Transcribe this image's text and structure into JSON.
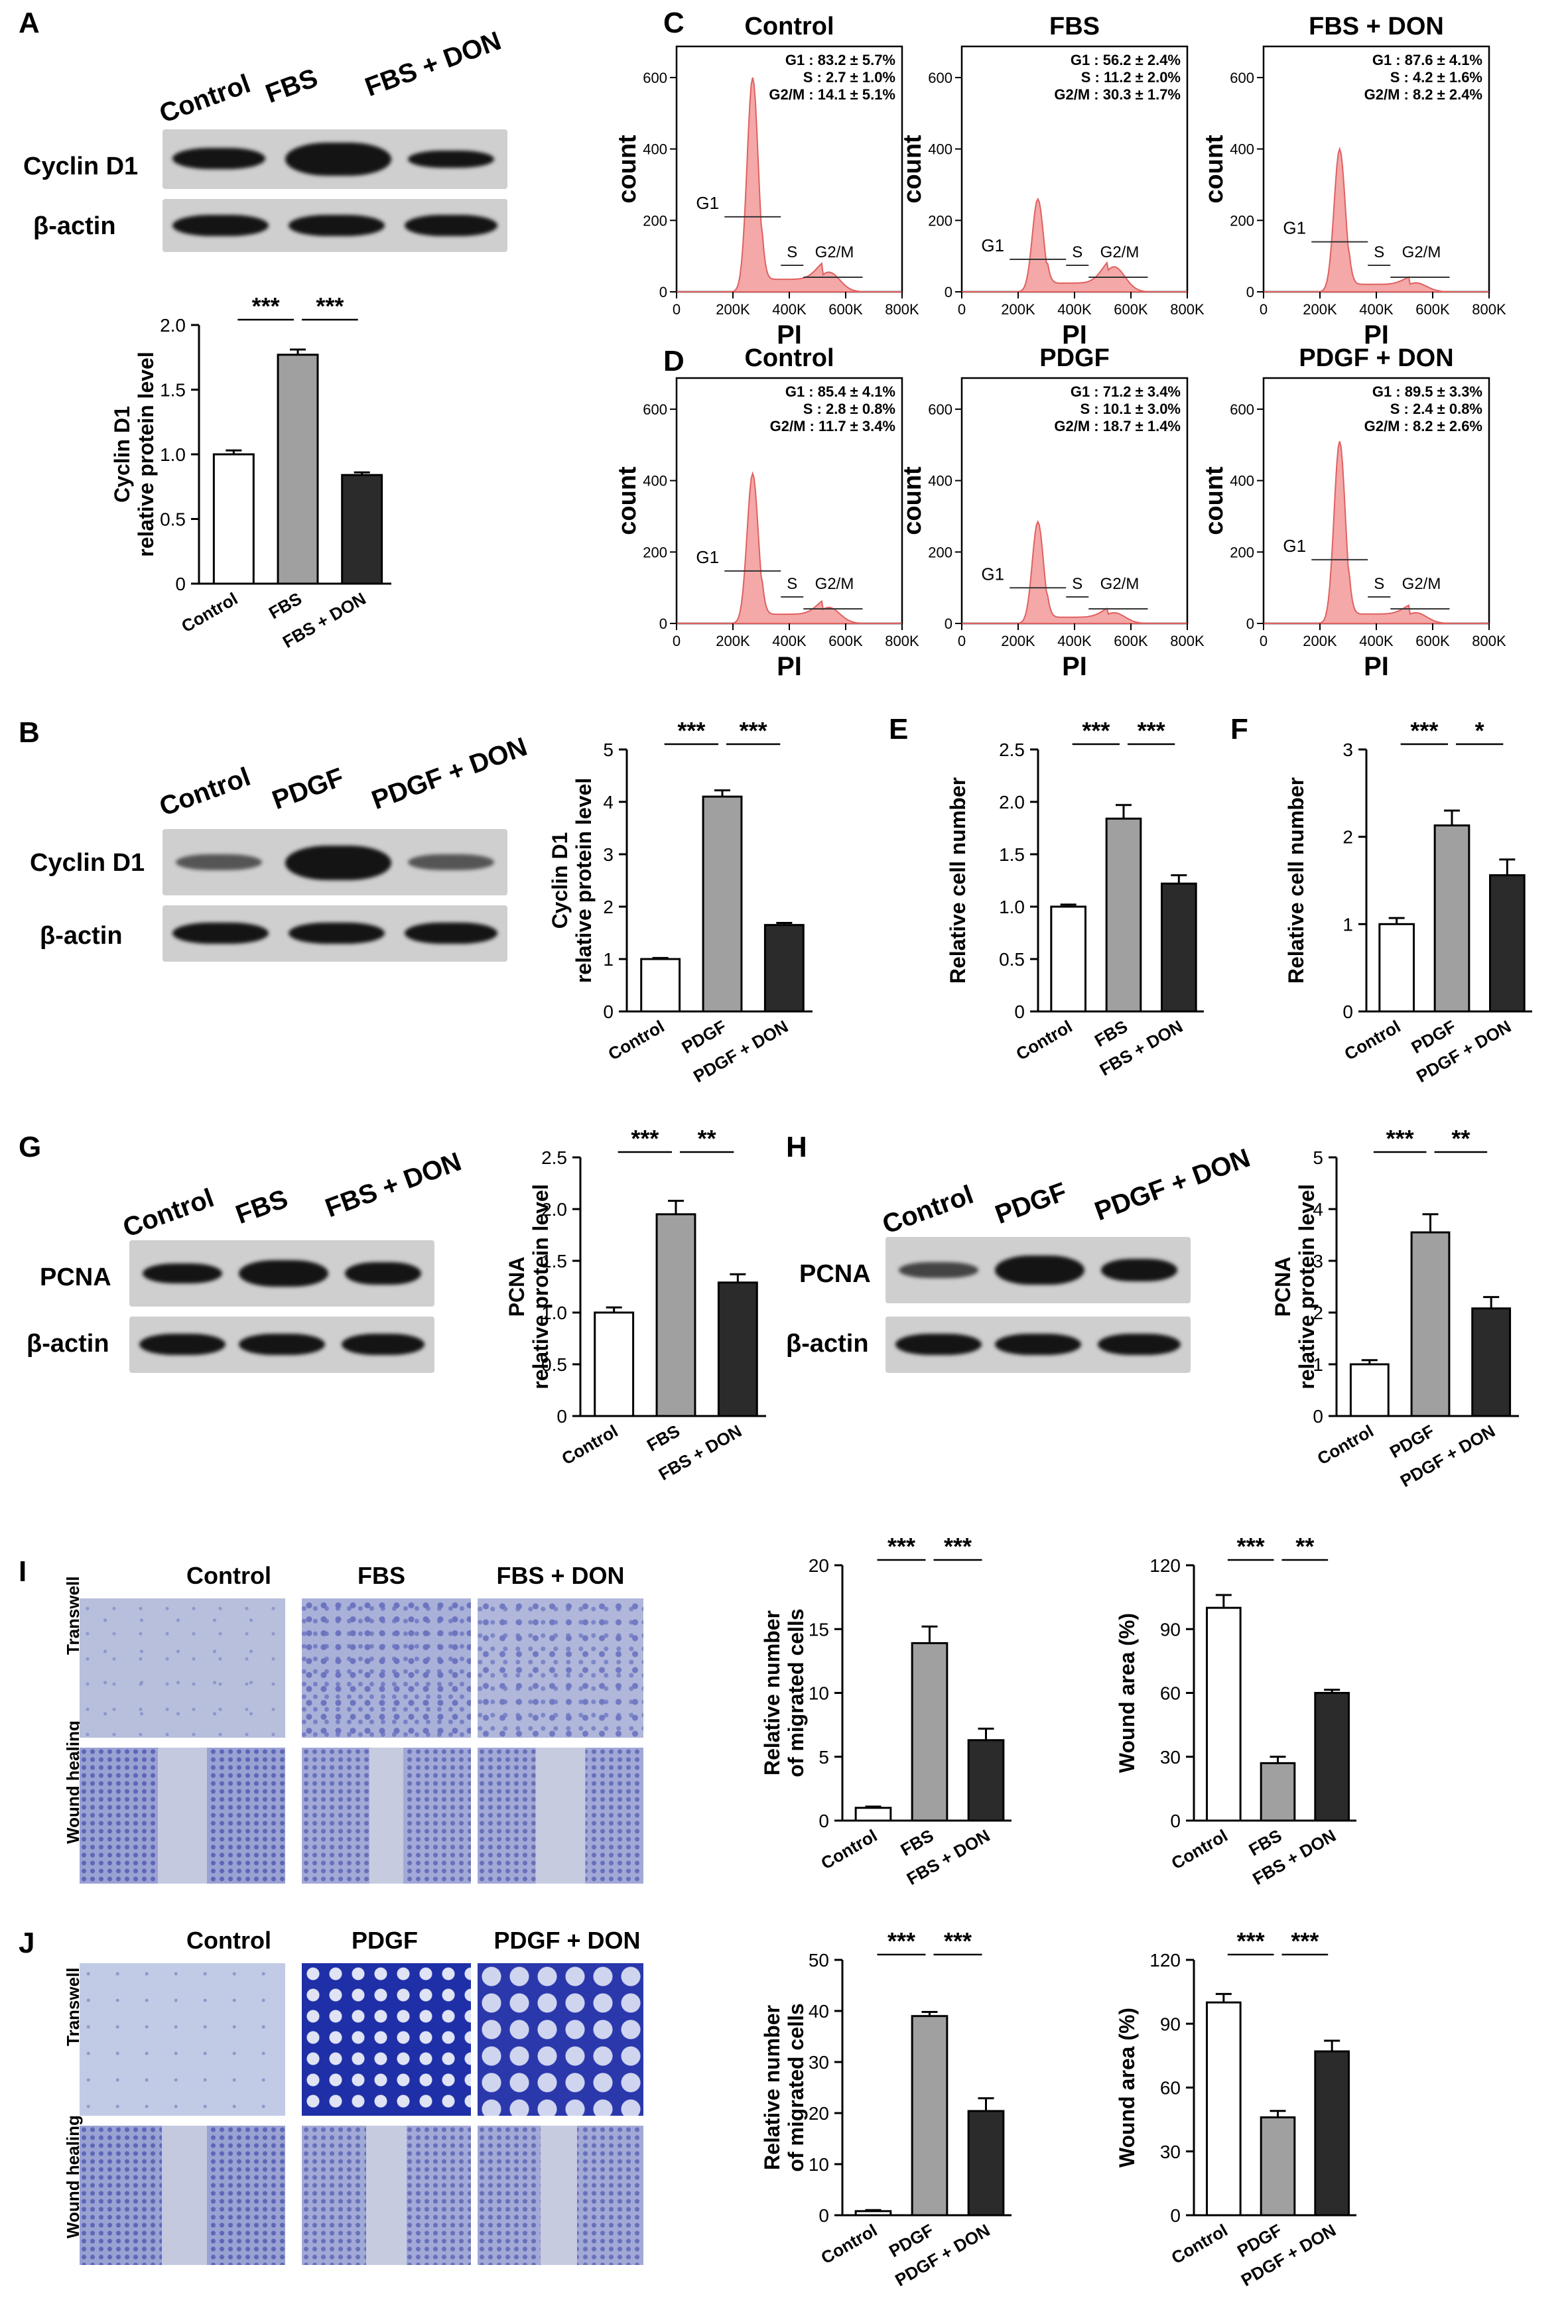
{
  "panels": {
    "A": "A",
    "B": "B",
    "C": "C",
    "D": "D",
    "E": "E",
    "F": "F",
    "G": "G",
    "H": "H",
    "I": "I",
    "J": "J"
  },
  "blots": {
    "A": {
      "lanes": [
        "Control",
        "FBS",
        "FBS + DON"
      ],
      "rows": [
        "Cyclin D1",
        "β-actin"
      ]
    },
    "B": {
      "lanes": [
        "Control",
        "PDGF",
        "PDGF + DON"
      ],
      "rows": [
        "Cyclin D1",
        "β-actin"
      ]
    },
    "G": {
      "lanes": [
        "Control",
        "FBS",
        "FBS + DON"
      ],
      "rows": [
        "PCNA",
        "β-actin"
      ]
    },
    "H": {
      "lanes": [
        "Control",
        "PDGF",
        "PDGF + DON"
      ],
      "rows": [
        "PCNA",
        "β-actin"
      ]
    }
  },
  "microscopy": {
    "I": {
      "columns": [
        "Control",
        "FBS",
        "FBS + DON"
      ],
      "rows": [
        "Transwell",
        "Wound healing"
      ]
    },
    "J": {
      "columns": [
        "Control",
        "PDGF",
        "PDGF + DON"
      ],
      "rows": [
        "Transwell",
        "Wound healing"
      ]
    }
  },
  "colors": {
    "control": "#ffffff",
    "treat": "#a0a0a0",
    "don": "#2b2b2b",
    "histogram": "#f4a8a8",
    "histogram_line": "#e06060",
    "stain": "#3b46b0"
  },
  "chart_data": [
    {
      "id": "A-bar",
      "type": "bar",
      "categories": [
        "Control",
        "FBS",
        "FBS + DON"
      ],
      "values": [
        1.0,
        1.77,
        0.84
      ],
      "errors": [
        0.03,
        0.04,
        0.02
      ],
      "ylabel": "Cyclin D1\nrelative protein level",
      "ylim": [
        0,
        2.0
      ],
      "yticks": [
        "0",
        "0.5",
        "1.0",
        "1.5",
        "2.0"
      ],
      "significance": [
        "***",
        "***"
      ]
    },
    {
      "id": "B-bar",
      "type": "bar",
      "categories": [
        "Control",
        "PDGF",
        "PDGF + DON"
      ],
      "values": [
        1.0,
        4.1,
        1.65
      ],
      "errors": [
        0.02,
        0.12,
        0.04
      ],
      "ylabel": "Cyclin D1\nrelative protein level",
      "ylim": [
        0,
        5
      ],
      "yticks": [
        "0",
        "1",
        "2",
        "3",
        "4",
        "5"
      ],
      "significance": [
        "***",
        "***"
      ]
    },
    {
      "id": "E-bar",
      "type": "bar",
      "categories": [
        "Control",
        "FBS",
        "FBS + DON"
      ],
      "values": [
        1.0,
        1.84,
        1.22
      ],
      "errors": [
        0.02,
        0.13,
        0.08
      ],
      "ylabel": "Relative cell number",
      "ylim": [
        0,
        2.5
      ],
      "yticks": [
        "0",
        "0.5",
        "1.0",
        "1.5",
        "2.0",
        "2.5"
      ],
      "significance": [
        "***",
        "***"
      ]
    },
    {
      "id": "F-bar",
      "type": "bar",
      "categories": [
        "Control",
        "PDGF",
        "PDGF + DON"
      ],
      "values": [
        1.0,
        2.13,
        1.56
      ],
      "errors": [
        0.07,
        0.17,
        0.18
      ],
      "ylabel": "Relative cell number",
      "ylim": [
        0,
        3
      ],
      "yticks": [
        "0",
        "1",
        "2",
        "3"
      ],
      "significance": [
        "***",
        "*"
      ]
    },
    {
      "id": "G-bar",
      "type": "bar",
      "categories": [
        "Control",
        "FBS",
        "FBS + DON"
      ],
      "values": [
        1.0,
        1.95,
        1.29
      ],
      "errors": [
        0.05,
        0.13,
        0.08
      ],
      "ylabel": "PCNA\nrelative protein level",
      "ylim": [
        0,
        2.5
      ],
      "yticks": [
        "0",
        "0.5",
        "1.0",
        "1.5",
        "2.0",
        "2.5"
      ],
      "significance": [
        "***",
        "**"
      ]
    },
    {
      "id": "H-bar",
      "type": "bar",
      "categories": [
        "Control",
        "PDGF",
        "PDGF + DON"
      ],
      "values": [
        1.0,
        3.55,
        2.08
      ],
      "errors": [
        0.08,
        0.35,
        0.22
      ],
      "ylabel": "PCNA\nrelative protein level",
      "ylim": [
        0,
        5
      ],
      "yticks": [
        "0",
        "1",
        "2",
        "3",
        "4",
        "5"
      ],
      "significance": [
        "***",
        "**"
      ]
    },
    {
      "id": "I-mig",
      "type": "bar",
      "categories": [
        "Control",
        "FBS",
        "FBS + DON"
      ],
      "values": [
        1.0,
        13.9,
        6.3
      ],
      "errors": [
        0.1,
        1.3,
        0.9
      ],
      "ylabel": "Relative number\nof migrated cells",
      "ylim": [
        0,
        20
      ],
      "yticks": [
        "0",
        "5",
        "10",
        "15",
        "20"
      ],
      "significance": [
        "***",
        "***"
      ]
    },
    {
      "id": "I-wound",
      "type": "bar",
      "categories": [
        "Control",
        "FBS",
        "FBS + DON"
      ],
      "values": [
        100,
        27,
        60
      ],
      "errors": [
        6,
        3,
        1.5
      ],
      "ylabel": "Wound area (%)",
      "ylim": [
        0,
        120
      ],
      "yticks": [
        "0",
        "30",
        "60",
        "90",
        "120"
      ],
      "significance": [
        "***",
        "**"
      ]
    },
    {
      "id": "J-mig",
      "type": "bar",
      "categories": [
        "Control",
        "PDGF",
        "PDGF + DON"
      ],
      "values": [
        0.8,
        39,
        20.4
      ],
      "errors": [
        0.2,
        0.8,
        2.5
      ],
      "ylabel": "Relative number\nof migrated cells",
      "ylim": [
        0,
        50
      ],
      "yticks": [
        "0",
        "10",
        "20",
        "30",
        "40",
        "50"
      ],
      "significance": [
        "***",
        "***"
      ]
    },
    {
      "id": "J-wound",
      "type": "bar",
      "categories": [
        "Control",
        "PDGF",
        "PDGF + DON"
      ],
      "values": [
        100,
        46,
        77
      ],
      "errors": [
        4,
        3,
        5
      ],
      "ylabel": "Wound area (%)",
      "ylim": [
        0,
        120
      ],
      "yticks": [
        "0",
        "30",
        "60",
        "90",
        "120"
      ],
      "significance": [
        "***",
        "***"
      ]
    },
    {
      "id": "C-hist",
      "type": "area",
      "group": "C",
      "xlabel": "PI",
      "ylabel": "count",
      "xticks": [
        "0",
        "200K",
        "400K",
        "600K",
        "800K"
      ],
      "yticks": [
        "0",
        "200",
        "400",
        "600"
      ],
      "ylim": [
        0,
        650
      ],
      "gates": [
        "G1",
        "S",
        "G2/M"
      ],
      "plots": [
        {
          "title": "Control",
          "stats": [
            "G1 : 83.2 ± 5.7%",
            "S : 2.7 ± 1.0%",
            "G2/M : 14.1 ± 5.1%"
          ],
          "g1_peak": 600,
          "g2_peak": 55
        },
        {
          "title": "FBS",
          "stats": [
            "G1 : 56.2 ± 2.4%",
            "S : 11.2 ± 2.0%",
            "G2/M : 30.3 ± 1.7%"
          ],
          "g1_peak": 260,
          "g2_peak": 70
        },
        {
          "title": "FBS + DON",
          "stats": [
            "G1 : 87.6 ± 4.1%",
            "S : 4.2 ± 1.6%",
            "G2/M : 8.2 ± 2.4%"
          ],
          "g1_peak": 400,
          "g2_peak": 25
        }
      ]
    },
    {
      "id": "D-hist",
      "type": "area",
      "group": "D",
      "xlabel": "PI",
      "ylabel": "count",
      "xticks": [
        "0",
        "200K",
        "400K",
        "600K",
        "800K"
      ],
      "yticks": [
        "0",
        "200",
        "400",
        "600"
      ],
      "ylim": [
        0,
        650
      ],
      "gates": [
        "G1",
        "S",
        "G2/M"
      ],
      "plots": [
        {
          "title": "Control",
          "stats": [
            "G1 : 85.4 ± 4.1%",
            "S : 2.8 ± 0.8%",
            "G2/M : 11.7 ± 3.4%"
          ],
          "g1_peak": 420,
          "g2_peak": 45
        },
        {
          "title": "PDGF",
          "stats": [
            "G1 : 71.2 ± 3.4%",
            "S : 10.1 ± 3.0%",
            "G2/M : 18.7 ± 1.4%"
          ],
          "g1_peak": 285,
          "g2_peak": 30
        },
        {
          "title": "PDGF + DON",
          "stats": [
            "G1 : 89.5 ± 3.3%",
            "S : 2.4 ± 0.8%",
            "G2/M : 8.2 ± 2.6%"
          ],
          "g1_peak": 510,
          "g2_peak": 30
        }
      ]
    }
  ]
}
